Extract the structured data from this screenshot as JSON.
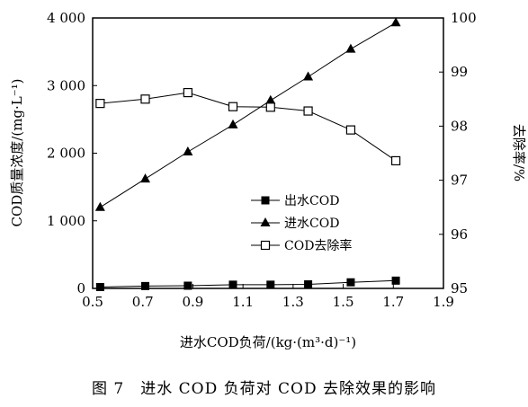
{
  "caption": "图 7　进水 COD 负荷对 COD 去除效果的影响",
  "chart_data": {
    "type": "line",
    "xlabel": "进水COD负荷/(kg·(m³·d)⁻¹)",
    "ylabel_left": "COD质量浓度/(mg·L⁻¹)",
    "ylabel_right": "去除率/%",
    "xlim": [
      0.5,
      1.9
    ],
    "xticks": [
      0.5,
      0.7,
      0.9,
      1.1,
      1.3,
      1.5,
      1.7,
      1.9
    ],
    "xtick_labels": [
      "0.5",
      "0.7",
      "0.9",
      "1.1",
      "1.3",
      "1.5",
      "1.7",
      "1.9"
    ],
    "ylim_left": [
      0,
      4000
    ],
    "yticks_left": [
      0,
      1000,
      2000,
      3000,
      4000
    ],
    "ytick_labels_left": [
      "0",
      "1 000",
      "2 000",
      "3 000",
      "4 000"
    ],
    "ylim_right": [
      95,
      100
    ],
    "yticks_right": [
      95,
      96,
      97,
      98,
      99,
      100
    ],
    "ytick_labels_right": [
      "95",
      "96",
      "97",
      "98",
      "99",
      "100"
    ],
    "grid": false,
    "legend_position": "center-right",
    "x": [
      0.53,
      0.71,
      0.88,
      1.06,
      1.21,
      1.36,
      1.53,
      1.71
    ],
    "series": [
      {
        "name": "出水COD",
        "axis": "left",
        "marker": "filled-square",
        "values": [
          20,
          35,
          40,
          55,
          55,
          60,
          90,
          115
        ]
      },
      {
        "name": "进水COD",
        "axis": "left",
        "marker": "filled-triangle",
        "values": [
          1200,
          1620,
          2020,
          2420,
          2780,
          3130,
          3540,
          3930
        ]
      },
      {
        "name": "COD去除率",
        "axis": "right",
        "marker": "open-square",
        "values": [
          98.42,
          98.5,
          98.62,
          98.36,
          98.35,
          98.28,
          97.93,
          97.36
        ]
      }
    ]
  }
}
